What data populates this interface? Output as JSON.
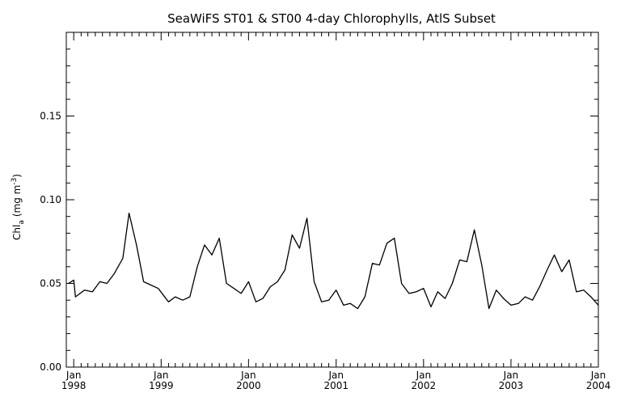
{
  "chart_data": {
    "type": "line",
    "title": "SeaWiFS ST01 & ST00 4-day Chlorophylls, AtlS Subset",
    "ylabel_main": "Chl",
    "ylabel_sub": "a",
    "ylabel_units": "(mg m",
    "ylabel_exp": "-3",
    "ylabel_close": ")",
    "ylim": [
      0.0,
      0.2
    ],
    "xlim": [
      "1997-12-01",
      "2004-01-01"
    ],
    "y_ticks": [
      {
        "value": 0.0,
        "label": "0.00"
      },
      {
        "value": 0.05,
        "label": "0.05"
      },
      {
        "value": 0.1,
        "label": "0.10"
      },
      {
        "value": 0.15,
        "label": "0.15"
      }
    ],
    "x_ticks": [
      {
        "date": "1998-01-01",
        "month": "Jan",
        "year": "1998"
      },
      {
        "date": "1999-01-01",
        "month": "Jan",
        "year": "1999"
      },
      {
        "date": "2000-01-01",
        "month": "Jan",
        "year": "2000"
      },
      {
        "date": "2001-01-01",
        "month": "Jan",
        "year": "2001"
      },
      {
        "date": "2002-01-01",
        "month": "Jan",
        "year": "2002"
      },
      {
        "date": "2003-01-01",
        "month": "Jan",
        "year": "2003"
      },
      {
        "date": "2004-01-01",
        "month": "Jan",
        "year": "2004"
      }
    ],
    "grid": false,
    "series": [
      {
        "points": [
          [
            "1997-12-10",
            0.05
          ],
          [
            "1998-01-01",
            0.052
          ],
          [
            "1998-01-08",
            0.042
          ],
          [
            "1998-02-15",
            0.046
          ],
          [
            "1998-03-20",
            0.045
          ],
          [
            "1998-04-20",
            0.051
          ],
          [
            "1998-05-20",
            0.05
          ],
          [
            "1998-06-20",
            0.056
          ],
          [
            "1998-07-25",
            0.065
          ],
          [
            "1998-08-20",
            0.092
          ],
          [
            "1998-09-20",
            0.073
          ],
          [
            "1998-10-20",
            0.051
          ],
          [
            "1998-11-20",
            0.049
          ],
          [
            "1998-12-20",
            0.047
          ],
          [
            "1999-02-01",
            0.039
          ],
          [
            "1999-03-01",
            0.042
          ],
          [
            "1999-04-01",
            0.04
          ],
          [
            "1999-05-01",
            0.042
          ],
          [
            "1999-06-01",
            0.06
          ],
          [
            "1999-07-01",
            0.073
          ],
          [
            "1999-08-01",
            0.067
          ],
          [
            "1999-09-01",
            0.077
          ],
          [
            "1999-10-01",
            0.05
          ],
          [
            "1999-11-01",
            0.047
          ],
          [
            "1999-12-01",
            0.044
          ],
          [
            "2000-01-01",
            0.051
          ],
          [
            "2000-02-01",
            0.039
          ],
          [
            "2000-03-01",
            0.041
          ],
          [
            "2000-04-01",
            0.048
          ],
          [
            "2000-05-01",
            0.051
          ],
          [
            "2000-06-01",
            0.058
          ],
          [
            "2000-07-01",
            0.079
          ],
          [
            "2000-08-01",
            0.071
          ],
          [
            "2000-09-01",
            0.089
          ],
          [
            "2000-10-01",
            0.051
          ],
          [
            "2000-11-01",
            0.039
          ],
          [
            "2000-12-01",
            0.04
          ],
          [
            "2001-01-01",
            0.046
          ],
          [
            "2001-02-01",
            0.037
          ],
          [
            "2001-03-01",
            0.038
          ],
          [
            "2001-04-01",
            0.035
          ],
          [
            "2001-05-01",
            0.042
          ],
          [
            "2001-06-01",
            0.062
          ],
          [
            "2001-07-01",
            0.061
          ],
          [
            "2001-08-01",
            0.074
          ],
          [
            "2001-09-01",
            0.077
          ],
          [
            "2001-10-01",
            0.05
          ],
          [
            "2001-11-01",
            0.044
          ],
          [
            "2001-12-01",
            0.045
          ],
          [
            "2002-01-01",
            0.047
          ],
          [
            "2002-02-01",
            0.036
          ],
          [
            "2002-03-01",
            0.045
          ],
          [
            "2002-04-01",
            0.041
          ],
          [
            "2002-05-01",
            0.05
          ],
          [
            "2002-06-01",
            0.064
          ],
          [
            "2002-07-01",
            0.063
          ],
          [
            "2002-08-01",
            0.082
          ],
          [
            "2002-09-01",
            0.061
          ],
          [
            "2002-10-01",
            0.035
          ],
          [
            "2002-11-01",
            0.046
          ],
          [
            "2002-12-01",
            0.041
          ],
          [
            "2003-01-01",
            0.037
          ],
          [
            "2003-02-01",
            0.038
          ],
          [
            "2003-03-01",
            0.042
          ],
          [
            "2003-04-01",
            0.04
          ],
          [
            "2003-05-01",
            0.048
          ],
          [
            "2003-06-01",
            0.058
          ],
          [
            "2003-07-01",
            0.067
          ],
          [
            "2003-08-01",
            0.057
          ],
          [
            "2003-09-01",
            0.064
          ],
          [
            "2003-10-01",
            0.045
          ],
          [
            "2003-11-01",
            0.046
          ],
          [
            "2003-12-01",
            0.042
          ],
          [
            "2004-01-01",
            0.037
          ]
        ]
      }
    ]
  }
}
